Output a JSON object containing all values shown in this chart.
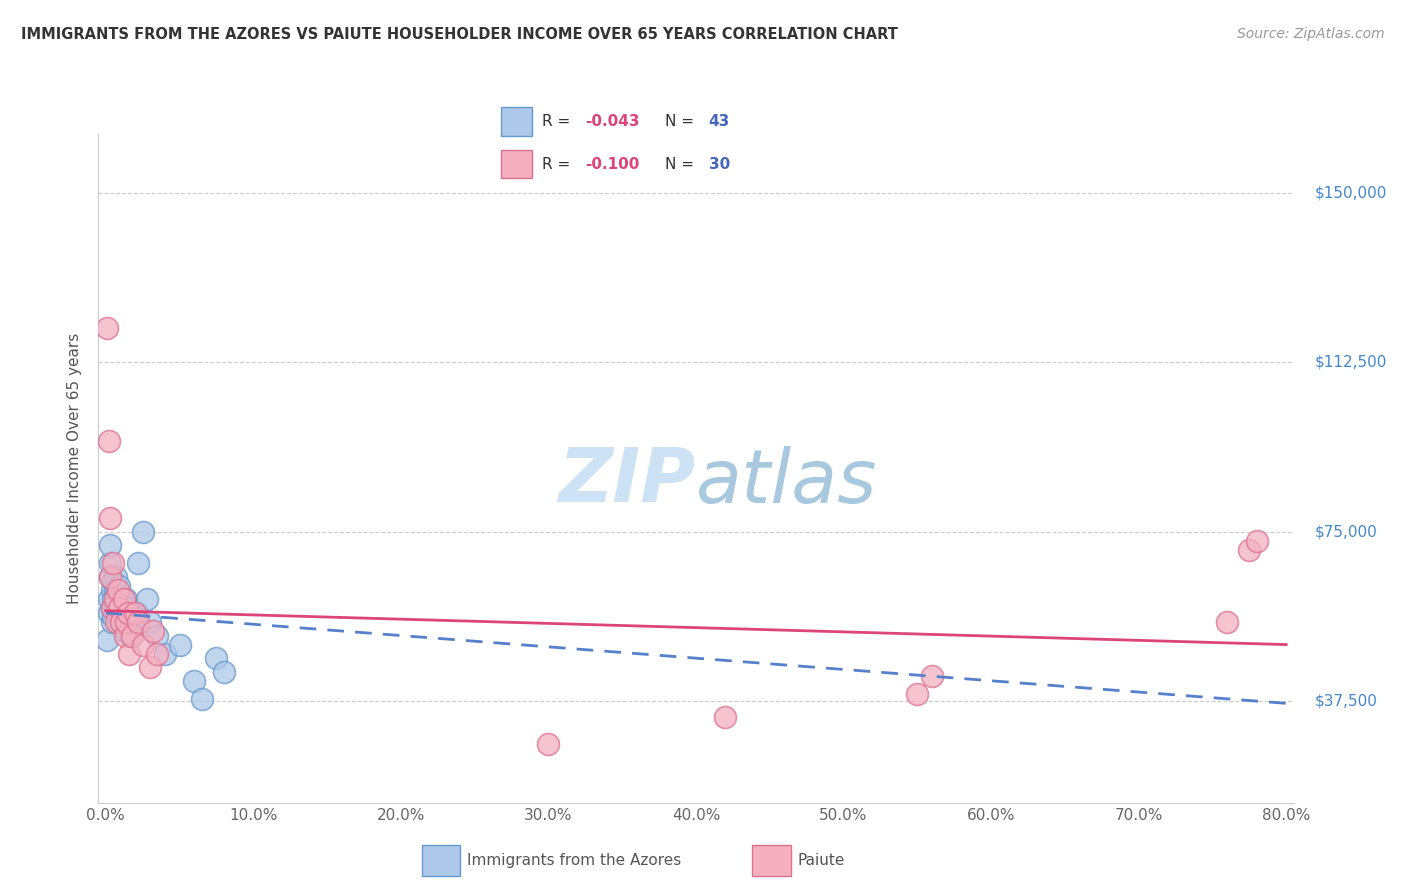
{
  "title": "IMMIGRANTS FROM THE AZORES VS PAIUTE HOUSEHOLDER INCOME OVER 65 YEARS CORRELATION CHART",
  "source": "Source: ZipAtlas.com",
  "ylabel": "Householder Income Over 65 years",
  "y_tick_labels": [
    "$37,500",
    "$75,000",
    "$112,500",
    "$150,000"
  ],
  "y_tick_values": [
    37500,
    75000,
    112500,
    150000
  ],
  "x_range": [
    -0.005,
    0.805
  ],
  "y_range": [
    15000,
    163000
  ],
  "legend_label_1": "Immigrants from the Azores",
  "legend_label_2": "Paiute",
  "R1": "-0.043",
  "N1": "43",
  "R2": "-0.100",
  "N2": "30",
  "color_azores_fill": "#adc8e8",
  "color_azores_edge": "#6699cc",
  "color_paiute_fill": "#f4b0c0",
  "color_paiute_edge": "#dd7090",
  "color_trendline_azores": "#5580cc",
  "color_trendline_paiute": "#dd4477",
  "background_color": "#ffffff",
  "grid_color": "#cccccc",
  "watermark_color": "#cde3f5",
  "azores_x": [
    0.001,
    0.002,
    0.002,
    0.003,
    0.003,
    0.003,
    0.004,
    0.004,
    0.004,
    0.005,
    0.005,
    0.005,
    0.006,
    0.006,
    0.007,
    0.007,
    0.007,
    0.008,
    0.008,
    0.009,
    0.01,
    0.01,
    0.011,
    0.012,
    0.013,
    0.014,
    0.015,
    0.016,
    0.017,
    0.018,
    0.02,
    0.021,
    0.022,
    0.025,
    0.028,
    0.03,
    0.035,
    0.04,
    0.05,
    0.06,
    0.065,
    0.075,
    0.08
  ],
  "azores_y": [
    51000,
    57000,
    60000,
    65000,
    68000,
    72000,
    58000,
    62000,
    55000,
    60000,
    64000,
    56000,
    62000,
    58000,
    65000,
    61000,
    57000,
    60000,
    55000,
    63000,
    60000,
    55000,
    58000,
    56000,
    53000,
    60000,
    55000,
    58000,
    52000,
    55000,
    55000,
    57000,
    68000,
    75000,
    60000,
    55000,
    52000,
    48000,
    50000,
    42000,
    38000,
    47000,
    44000
  ],
  "paiute_x": [
    0.001,
    0.002,
    0.003,
    0.003,
    0.004,
    0.005,
    0.006,
    0.007,
    0.008,
    0.009,
    0.01,
    0.012,
    0.013,
    0.014,
    0.015,
    0.016,
    0.018,
    0.02,
    0.022,
    0.025,
    0.03,
    0.032,
    0.035,
    0.3,
    0.42,
    0.55,
    0.56,
    0.76,
    0.775,
    0.78
  ],
  "paiute_y": [
    120000,
    95000,
    65000,
    78000,
    58000,
    68000,
    60000,
    55000,
    62000,
    58000,
    55000,
    60000,
    52000,
    55000,
    57000,
    48000,
    52000,
    57000,
    55000,
    50000,
    45000,
    53000,
    48000,
    28000,
    34000,
    39000,
    43000,
    55000,
    71000,
    73000
  ]
}
